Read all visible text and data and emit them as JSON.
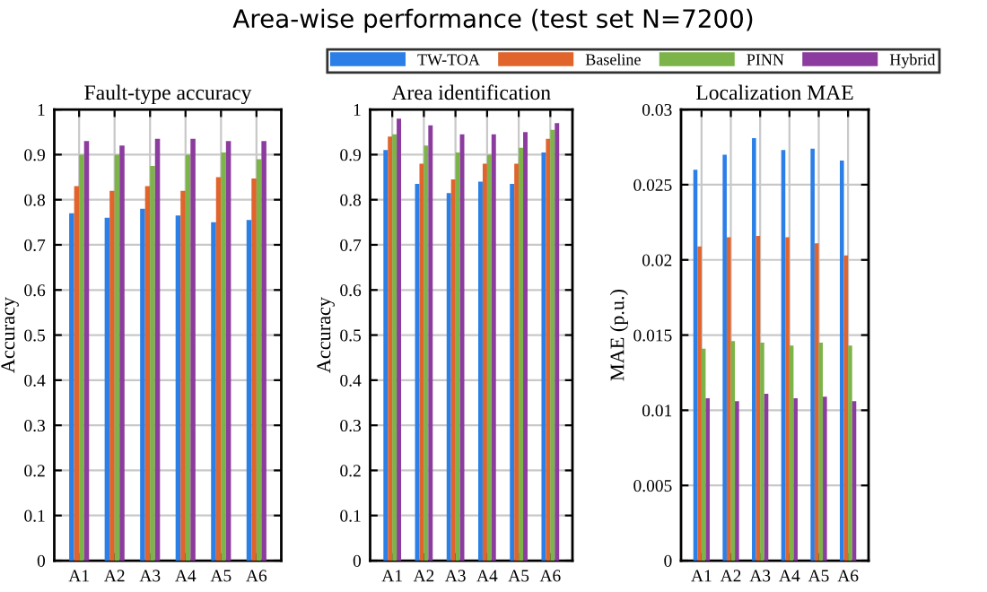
{
  "chart_data": [
    {
      "type": "bar",
      "title": "Fault-type accuracy",
      "ylabel": "Accuracy",
      "annotations": [
        "Area-wise performance (test set N=7200)"
      ],
      "categories": [
        "A1",
        "A2",
        "A3",
        "A4",
        "A5",
        "A6"
      ],
      "ylim": [
        0,
        1
      ],
      "yticks": [
        0,
        0.1,
        0.2,
        0.3,
        0.4,
        0.5,
        0.6,
        0.7,
        0.8,
        0.9,
        1
      ],
      "grid": true,
      "legend": "top right",
      "series": [
        {
          "name": "TW-TOA",
          "color": "#2b7fe6",
          "values": [
            0.77,
            0.76,
            0.78,
            0.765,
            0.75,
            0.755
          ]
        },
        {
          "name": "Baseline",
          "color": "#e0642c",
          "values": [
            0.83,
            0.82,
            0.83,
            0.82,
            0.85,
            0.847
          ]
        },
        {
          "name": "PINN",
          "color": "#7db44a",
          "values": [
            0.9,
            0.9,
            0.875,
            0.9,
            0.905,
            0.89
          ]
        },
        {
          "name": "Hybrid",
          "color": "#8c3c9e",
          "values": [
            0.93,
            0.92,
            0.935,
            0.935,
            0.93,
            0.93
          ]
        }
      ]
    },
    {
      "type": "bar",
      "title": "Area identification",
      "ylabel": "Accuracy",
      "categories": [
        "A1",
        "A2",
        "A3",
        "A4",
        "A5",
        "A6"
      ],
      "ylim": [
        0,
        1
      ],
      "yticks": [
        0,
        0.1,
        0.2,
        0.3,
        0.4,
        0.5,
        0.6,
        0.7,
        0.8,
        0.9,
        1
      ],
      "grid": true,
      "series": [
        {
          "color": "#2b7fe6",
          "values": [
            0.91,
            0.835,
            0.815,
            0.84,
            0.835,
            0.905
          ]
        },
        {
          "color": "#e0642c",
          "values": [
            0.94,
            0.88,
            0.845,
            0.88,
            0.88,
            0.935
          ]
        },
        {
          "color": "#7db44a",
          "values": [
            0.945,
            0.92,
            0.905,
            0.9,
            0.915,
            0.955
          ]
        },
        {
          "color": "#8c3c9e",
          "values": [
            0.98,
            0.965,
            0.945,
            0.945,
            0.95,
            0.97
          ]
        }
      ]
    },
    {
      "type": "bar",
      "title": "Localization MAE",
      "ylabel": "MAE (p.u.)",
      "categories": [
        "A1",
        "A2",
        "A3",
        "A4",
        "A5",
        "A6"
      ],
      "ylim": [
        0,
        0.03
      ],
      "yticks": [
        0,
        0.005,
        0.01,
        0.015,
        0.02,
        0.025,
        0.03
      ],
      "grid": true,
      "series": [
        {
          "color": "#2b7fe6",
          "values": [
            0.026,
            0.027,
            0.0281,
            0.0273,
            0.0274,
            0.0266
          ]
        },
        {
          "color": "#e0642c",
          "values": [
            0.0209,
            0.0215,
            0.0216,
            0.0215,
            0.0211,
            0.0203
          ]
        },
        {
          "color": "#7db44a",
          "values": [
            0.0141,
            0.0146,
            0.0145,
            0.0143,
            0.0145,
            0.0143
          ]
        },
        {
          "color": "#8c3c9e",
          "values": [
            0.0108,
            0.0106,
            0.0111,
            0.0108,
            0.0109,
            0.0106
          ]
        }
      ]
    }
  ]
}
